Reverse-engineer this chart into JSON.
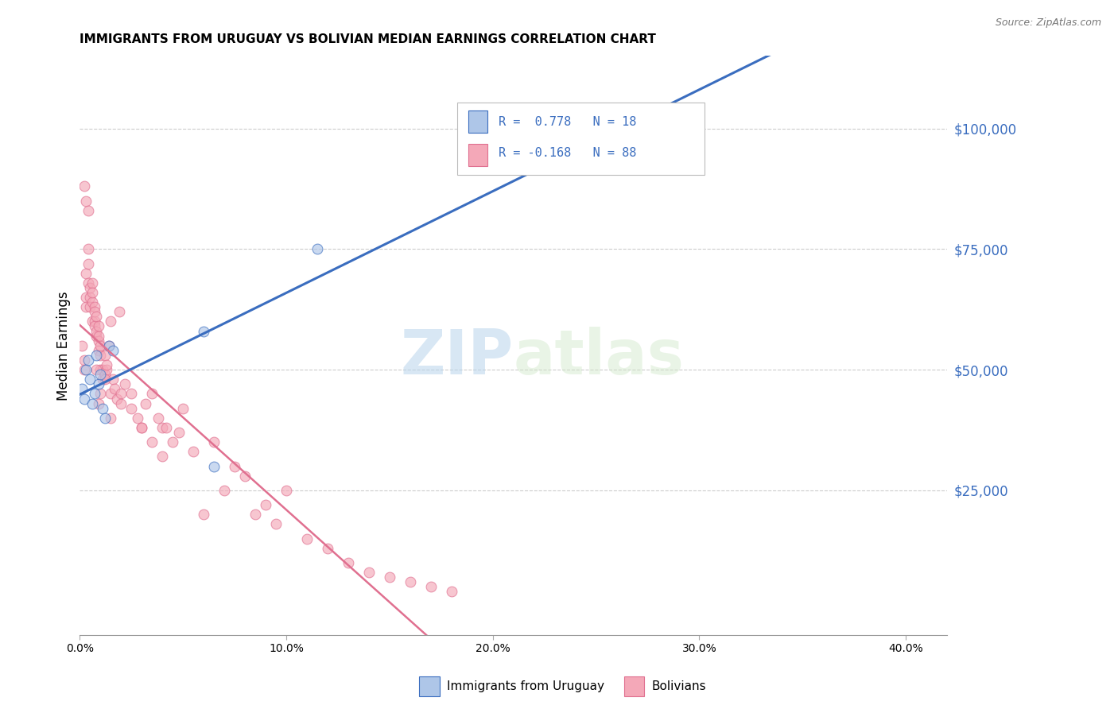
{
  "title": "IMMIGRANTS FROM URUGUAY VS BOLIVIAN MEDIAN EARNINGS CORRELATION CHART",
  "source": "Source: ZipAtlas.com",
  "ylabel": "Median Earnings",
  "y_ticks": [
    0,
    25000,
    50000,
    75000,
    100000
  ],
  "y_tick_labels": [
    "",
    "$25,000",
    "$50,000",
    "$75,000",
    "$100,000"
  ],
  "x_ticks": [
    0.0,
    0.1,
    0.2,
    0.3,
    0.4
  ],
  "x_tick_labels": [
    "0.0%",
    "10.0%",
    "20.0%",
    "30.0%",
    "40.0%"
  ],
  "xlim": [
    0.0,
    0.42
  ],
  "ylim": [
    -5000,
    115000
  ],
  "watermark_zip": "ZIP",
  "watermark_atlas": "atlas",
  "uruguay_color": "#aec6e8",
  "bolivia_color": "#f4a8b8",
  "line_blue": "#3a6dbf",
  "line_pink": "#e07090",
  "scatter_alpha": 0.65,
  "scatter_size": 85,
  "grid_color": "#cccccc",
  "background_color": "#ffffff",
  "uruguay_x": [
    0.001,
    0.002,
    0.003,
    0.004,
    0.005,
    0.006,
    0.007,
    0.008,
    0.009,
    0.01,
    0.011,
    0.012,
    0.014,
    0.016,
    0.06,
    0.065,
    0.115,
    0.2
  ],
  "uruguay_y": [
    46000,
    44000,
    50000,
    52000,
    48000,
    43000,
    45000,
    53000,
    47000,
    49000,
    42000,
    40000,
    55000,
    54000,
    58000,
    30000,
    75000,
    92000
  ],
  "bolivia_x": [
    0.001,
    0.002,
    0.002,
    0.003,
    0.003,
    0.003,
    0.004,
    0.004,
    0.004,
    0.005,
    0.005,
    0.005,
    0.006,
    0.006,
    0.006,
    0.006,
    0.007,
    0.007,
    0.007,
    0.007,
    0.008,
    0.008,
    0.008,
    0.009,
    0.009,
    0.009,
    0.009,
    0.01,
    0.01,
    0.01,
    0.011,
    0.011,
    0.012,
    0.012,
    0.013,
    0.013,
    0.014,
    0.015,
    0.015,
    0.016,
    0.017,
    0.018,
    0.019,
    0.02,
    0.022,
    0.025,
    0.028,
    0.03,
    0.032,
    0.035,
    0.038,
    0.04,
    0.042,
    0.045,
    0.048,
    0.05,
    0.055,
    0.06,
    0.065,
    0.07,
    0.075,
    0.08,
    0.085,
    0.09,
    0.095,
    0.1,
    0.11,
    0.12,
    0.13,
    0.14,
    0.15,
    0.16,
    0.17,
    0.18,
    0.003,
    0.004,
    0.008,
    0.009,
    0.01,
    0.012,
    0.015,
    0.02,
    0.025,
    0.03,
    0.035,
    0.04,
    0.002
  ],
  "bolivia_y": [
    55000,
    52000,
    50000,
    65000,
    63000,
    70000,
    75000,
    72000,
    68000,
    65000,
    67000,
    63000,
    68000,
    64000,
    66000,
    60000,
    63000,
    60000,
    62000,
    59000,
    57000,
    61000,
    58000,
    56000,
    54000,
    59000,
    57000,
    53000,
    55000,
    50000,
    50000,
    48000,
    53000,
    49000,
    50000,
    51000,
    55000,
    60000,
    45000,
    48000,
    46000,
    44000,
    62000,
    45000,
    47000,
    45000,
    40000,
    38000,
    43000,
    45000,
    40000,
    38000,
    38000,
    35000,
    37000,
    42000,
    33000,
    20000,
    35000,
    25000,
    30000,
    28000,
    20000,
    22000,
    18000,
    25000,
    15000,
    13000,
    10000,
    8000,
    7000,
    6000,
    5000,
    4000,
    85000,
    83000,
    50000,
    43000,
    45000,
    48000,
    40000,
    43000,
    42000,
    38000,
    35000,
    32000,
    88000
  ]
}
